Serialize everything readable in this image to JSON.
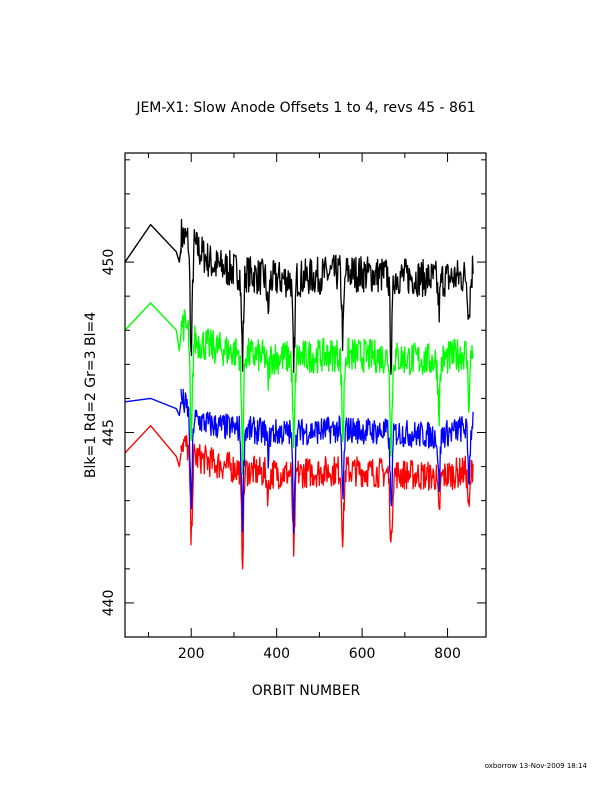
{
  "chart_data": {
    "type": "line",
    "title": "JEM-X1: Slow Anode Offsets 1 to 4, revs 45 - 861",
    "xlabel": "ORBIT NUMBER",
    "ylabel": "Blk=1 Rd=2 Gr=3 Bl=4",
    "xlim": [
      45,
      890
    ],
    "ylim": [
      439.0,
      453.2
    ],
    "xticks": [
      200,
      400,
      600,
      800
    ],
    "xtick_labels": [
      "200",
      "400",
      "600",
      "800"
    ],
    "yticks": [
      440,
      445,
      450
    ],
    "ytick_labels": [
      "440",
      "445",
      "450"
    ],
    "grid": false,
    "legend": "none",
    "credit": "oxborrow 13-Nov-2009 18:14",
    "series": [
      {
        "color": "#000000",
        "base": 449.6,
        "amp": 0.55,
        "segments": [
          {
            "x": [
              45,
              105,
              165,
              172,
              176
            ],
            "y": [
              450.0,
              451.1,
              450.3,
              450.0,
              450.4
            ]
          },
          {
            "x": [
              176,
              206,
              253,
              320,
              380,
              440,
              555,
              668,
              780,
              856,
              861
            ],
            "y": [
              450.8,
              450.5,
              449.9,
              449.7,
              449.5,
              449.5,
              449.7,
              449.6,
              449.5,
              449.6,
              450.0
            ]
          }
        ],
        "dips": [
          {
            "x": 200,
            "y": 446.7
          },
          {
            "x": 320,
            "y": 446.9
          },
          {
            "x": 380,
            "y": 448.4
          },
          {
            "x": 440,
            "y": 446.5
          },
          {
            "x": 555,
            "y": 447.5
          },
          {
            "x": 668,
            "y": 446.8
          },
          {
            "x": 780,
            "y": 448.5
          },
          {
            "x": 850,
            "y": 448.3
          }
        ]
      },
      {
        "color": "#ff0000",
        "base": 443.9,
        "amp": 0.45,
        "segments": [
          {
            "x": [
              45,
              105,
              165,
              172,
              176
            ],
            "y": [
              444.4,
              445.2,
              444.3,
              444.0,
              444.4
            ]
          },
          {
            "x": [
              176,
              206,
              253,
              320,
              380,
              440,
              555,
              668,
              780,
              856,
              861
            ],
            "y": [
              444.8,
              444.3,
              444.1,
              443.9,
              443.8,
              443.8,
              443.9,
              443.8,
              443.7,
              443.9,
              444.1
            ]
          }
        ],
        "dips": [
          {
            "x": 200,
            "y": 441.5
          },
          {
            "x": 320,
            "y": 441.1
          },
          {
            "x": 380,
            "y": 443.1
          },
          {
            "x": 440,
            "y": 441.1
          },
          {
            "x": 555,
            "y": 441.6
          },
          {
            "x": 668,
            "y": 441.3
          },
          {
            "x": 780,
            "y": 442.4
          },
          {
            "x": 850,
            "y": 442.5
          }
        ]
      },
      {
        "color": "#00ff00",
        "base": 447.4,
        "amp": 0.5,
        "segments": [
          {
            "x": [
              45,
              105,
              165,
              172,
              176
            ],
            "y": [
              448.0,
              448.8,
              448.0,
              447.4,
              447.9
            ]
          },
          {
            "x": [
              176,
              206,
              253,
              320,
              380,
              440,
              555,
              668,
              780,
              856,
              861
            ],
            "y": [
              448.3,
              447.7,
              447.5,
              447.3,
              447.2,
              447.2,
              447.3,
              447.2,
              447.1,
              447.4,
              447.6
            ]
          }
        ],
        "dips": [
          {
            "x": 200,
            "y": 444.0
          },
          {
            "x": 320,
            "y": 444.0
          },
          {
            "x": 380,
            "y": 446.5
          },
          {
            "x": 440,
            "y": 444.2
          },
          {
            "x": 555,
            "y": 444.5
          },
          {
            "x": 668,
            "y": 444.4
          },
          {
            "x": 780,
            "y": 445.5
          },
          {
            "x": 850,
            "y": 445.8
          }
        ]
      },
      {
        "color": "#0000ff",
        "base": 445.1,
        "amp": 0.4,
        "segments": [
          {
            "x": [
              45,
              105,
              165,
              172,
              176
            ],
            "y": [
              445.9,
              446.0,
              445.7,
              445.5,
              445.9
            ]
          },
          {
            "x": [
              176,
              206,
              253,
              320,
              380,
              440,
              555,
              668,
              780,
              856,
              861
            ],
            "y": [
              446.0,
              445.4,
              445.2,
              445.1,
              445.0,
              445.0,
              445.1,
              445.0,
              444.9,
              445.2,
              445.5
            ]
          }
        ],
        "dips": [
          {
            "x": 200,
            "y": 442.4
          },
          {
            "x": 320,
            "y": 442.2
          },
          {
            "x": 380,
            "y": 444.3
          },
          {
            "x": 440,
            "y": 442.3
          },
          {
            "x": 555,
            "y": 442.8
          },
          {
            "x": 668,
            "y": 442.5
          },
          {
            "x": 780,
            "y": 443.3
          },
          {
            "x": 850,
            "y": 443.5
          }
        ]
      }
    ]
  }
}
